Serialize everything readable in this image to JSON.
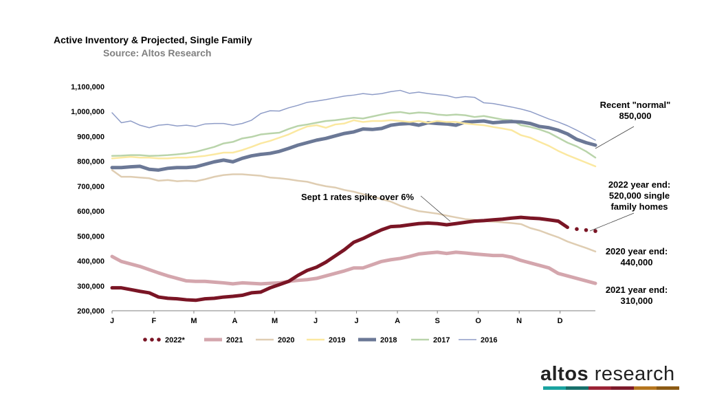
{
  "title": "Active Inventory & Projected, Single Family",
  "subtitle": "Source: Altos Research",
  "logo": {
    "part1": "altos",
    "part2": " research",
    "bar_colors": [
      "#1aa3a0",
      "#17706b",
      "#9b2335",
      "#7d1a2b",
      "#b5761f",
      "#8c5a14"
    ]
  },
  "chart_data": {
    "type": "line",
    "title": "Active Inventory & Projected, Single Family",
    "xlabel": "",
    "ylabel": "",
    "ylim": [
      200000,
      1100000
    ],
    "yticks": [
      200000,
      300000,
      400000,
      500000,
      600000,
      700000,
      800000,
      900000,
      1000000,
      1100000
    ],
    "ytick_labels": [
      "200,000",
      "300,000",
      "400,000",
      "500,000",
      "600,000",
      "700,000",
      "800,000",
      "900,000",
      "1,000,000",
      "1,100,000"
    ],
    "xlim": [
      0,
      52
    ],
    "xticks": [
      0,
      4.5,
      8.8,
      13.2,
      17.5,
      21.9,
      26.3,
      30.7,
      35.0,
      39.4,
      43.8,
      48.2
    ],
    "xtick_labels": [
      "J",
      "F",
      "M",
      "A",
      "M",
      "J",
      "J",
      "A",
      "S",
      "O",
      "N",
      "D"
    ],
    "series": [
      {
        "name": "2016",
        "color": "#8e9cc7",
        "width": 1.5,
        "x": [
          0,
          1,
          2,
          3,
          4,
          5,
          6,
          7,
          8,
          9,
          10,
          11,
          12,
          13,
          14,
          15,
          16,
          17,
          18,
          19,
          20,
          21,
          22,
          23,
          24,
          25,
          26,
          27,
          28,
          29,
          30,
          31,
          32,
          33,
          34,
          35,
          36,
          37,
          38,
          39,
          40,
          41,
          42,
          43,
          44,
          45,
          46,
          47,
          48,
          49,
          50,
          51,
          52
        ],
        "values": [
          995000,
          955000,
          962000,
          945000,
          935000,
          945000,
          948000,
          942000,
          945000,
          940000,
          950000,
          952000,
          952000,
          945000,
          952000,
          965000,
          992000,
          1003000,
          1002000,
          1015000,
          1025000,
          1037000,
          1042000,
          1048000,
          1055000,
          1062000,
          1066000,
          1072000,
          1068000,
          1072000,
          1080000,
          1085000,
          1073000,
          1078000,
          1072000,
          1068000,
          1064000,
          1055000,
          1060000,
          1057000,
          1035000,
          1032000,
          1025000,
          1018000,
          1010000,
          1000000,
          985000,
          970000,
          958000,
          943000,
          925000,
          905000,
          885000
        ]
      },
      {
        "name": "2017",
        "color": "#b9d4aa",
        "width": 2.5,
        "x": [
          0,
          1,
          2,
          3,
          4,
          5,
          6,
          7,
          8,
          9,
          10,
          11,
          12,
          13,
          14,
          15,
          16,
          17,
          18,
          19,
          20,
          21,
          22,
          23,
          24,
          25,
          26,
          27,
          28,
          29,
          30,
          31,
          32,
          33,
          34,
          35,
          36,
          37,
          38,
          39,
          40,
          41,
          42,
          43,
          44,
          45,
          46,
          47,
          48,
          49,
          50,
          51,
          52
        ],
        "values": [
          822000,
          823000,
          825000,
          825000,
          822000,
          823000,
          825000,
          828000,
          832000,
          838000,
          848000,
          858000,
          872000,
          878000,
          892000,
          898000,
          908000,
          912000,
          915000,
          930000,
          942000,
          948000,
          955000,
          962000,
          965000,
          970000,
          975000,
          972000,
          980000,
          988000,
          995000,
          998000,
          992000,
          996000,
          994000,
          988000,
          985000,
          988000,
          985000,
          978000,
          982000,
          975000,
          968000,
          965000,
          945000,
          938000,
          928000,
          915000,
          895000,
          875000,
          860000,
          840000,
          815000
        ]
      },
      {
        "name": "2018",
        "color": "#6b7896",
        "width": 5,
        "x": [
          0,
          1,
          2,
          3,
          4,
          5,
          6,
          7,
          8,
          9,
          10,
          11,
          12,
          13,
          14,
          15,
          16,
          17,
          18,
          19,
          20,
          21,
          22,
          23,
          24,
          25,
          26,
          27,
          28,
          29,
          30,
          31,
          32,
          33,
          34,
          35,
          36,
          37,
          38,
          39,
          40,
          41,
          42,
          43,
          44,
          45,
          46,
          47,
          48,
          49,
          50,
          51,
          52
        ],
        "values": [
          775000,
          775000,
          778000,
          780000,
          768000,
          765000,
          772000,
          775000,
          775000,
          778000,
          788000,
          798000,
          805000,
          798000,
          812000,
          822000,
          828000,
          832000,
          840000,
          852000,
          865000,
          875000,
          885000,
          892000,
          902000,
          912000,
          918000,
          930000,
          928000,
          932000,
          945000,
          950000,
          952000,
          945000,
          955000,
          952000,
          950000,
          945000,
          958000,
          960000,
          962000,
          955000,
          958000,
          960000,
          958000,
          952000,
          940000,
          935000,
          925000,
          910000,
          888000,
          875000,
          865000
        ]
      },
      {
        "name": "2019",
        "color": "#fbe8a0",
        "width": 2.5,
        "x": [
          0,
          1,
          2,
          3,
          4,
          5,
          6,
          7,
          8,
          9,
          10,
          11,
          12,
          13,
          14,
          15,
          16,
          17,
          18,
          19,
          20,
          21,
          22,
          23,
          24,
          25,
          26,
          27,
          28,
          29,
          30,
          31,
          32,
          33,
          34,
          35,
          36,
          37,
          38,
          39,
          40,
          41,
          42,
          43,
          44,
          45,
          46,
          47,
          48,
          49,
          50,
          51,
          52
        ],
        "values": [
          812000,
          815000,
          818000,
          815000,
          815000,
          812000,
          812000,
          815000,
          815000,
          818000,
          822000,
          828000,
          835000,
          835000,
          845000,
          858000,
          872000,
          882000,
          895000,
          908000,
          925000,
          940000,
          945000,
          935000,
          948000,
          952000,
          965000,
          958000,
          962000,
          962000,
          965000,
          962000,
          958000,
          962000,
          955000,
          962000,
          958000,
          958000,
          952000,
          948000,
          945000,
          938000,
          932000,
          925000,
          905000,
          895000,
          878000,
          862000,
          842000,
          825000,
          810000,
          795000,
          780000
        ]
      },
      {
        "name": "2020",
        "color": "#dfcdb2",
        "width": 2.5,
        "x": [
          0,
          1,
          2,
          3,
          4,
          5,
          6,
          7,
          8,
          9,
          10,
          11,
          12,
          13,
          14,
          15,
          16,
          17,
          18,
          19,
          20,
          21,
          22,
          23,
          24,
          25,
          26,
          27,
          28,
          29,
          30,
          31,
          32,
          33,
          34,
          35,
          36,
          37,
          38,
          39,
          40,
          41,
          42,
          43,
          44,
          45,
          46,
          47,
          48,
          49,
          50,
          51,
          52
        ],
        "values": [
          765000,
          738000,
          738000,
          735000,
          732000,
          722000,
          725000,
          720000,
          722000,
          720000,
          728000,
          738000,
          745000,
          748000,
          748000,
          745000,
          742000,
          735000,
          732000,
          728000,
          722000,
          718000,
          708000,
          700000,
          695000,
          685000,
          678000,
          668000,
          658000,
          648000,
          638000,
          622000,
          610000,
          600000,
          595000,
          590000,
          582000,
          575000,
          568000,
          565000,
          560000,
          558000,
          555000,
          552000,
          548000,
          532000,
          522000,
          508000,
          495000,
          478000,
          465000,
          452000,
          438000
        ]
      },
      {
        "name": "2021",
        "color": "#d4a6ad",
        "width": 5,
        "x": [
          0,
          1,
          2,
          3,
          4,
          5,
          6,
          7,
          8,
          9,
          10,
          11,
          12,
          13,
          14,
          15,
          16,
          17,
          18,
          19,
          20,
          21,
          22,
          23,
          24,
          25,
          26,
          27,
          28,
          29,
          30,
          31,
          32,
          33,
          34,
          35,
          36,
          37,
          38,
          39,
          40,
          41,
          42,
          43,
          44,
          45,
          46,
          47,
          48,
          49,
          50,
          51,
          52
        ],
        "values": [
          418000,
          398000,
          388000,
          378000,
          365000,
          352000,
          340000,
          330000,
          320000,
          318000,
          318000,
          315000,
          312000,
          308000,
          312000,
          310000,
          308000,
          310000,
          312000,
          318000,
          322000,
          325000,
          330000,
          340000,
          350000,
          360000,
          372000,
          372000,
          385000,
          398000,
          405000,
          410000,
          418000,
          428000,
          432000,
          435000,
          430000,
          435000,
          432000,
          428000,
          425000,
          422000,
          422000,
          415000,
          402000,
          392000,
          382000,
          372000,
          350000,
          340000,
          330000,
          320000,
          310000
        ]
      },
      {
        "name": "2022*",
        "color": "#7a1525",
        "width": 5,
        "x": [
          0,
          1,
          2,
          3,
          4,
          5,
          6,
          7,
          8,
          9,
          10,
          11,
          12,
          13,
          14,
          15,
          16,
          17,
          18,
          19,
          20,
          21,
          22,
          23,
          24,
          25,
          26,
          27,
          28,
          29,
          30,
          31,
          32,
          33,
          34,
          35,
          36,
          37,
          38,
          39,
          40,
          41,
          42,
          43,
          44,
          45,
          46,
          47,
          48,
          49,
          50,
          51,
          52
        ],
        "values": [
          292000,
          292000,
          285000,
          278000,
          272000,
          255000,
          250000,
          248000,
          244000,
          242000,
          248000,
          250000,
          255000,
          258000,
          262000,
          272000,
          275000,
          292000,
          305000,
          318000,
          342000,
          362000,
          375000,
          395000,
          420000,
          445000,
          475000,
          490000,
          508000,
          525000,
          538000,
          540000,
          545000,
          550000,
          552000,
          550000,
          545000,
          550000,
          555000,
          560000,
          562000,
          565000,
          568000,
          572000,
          575000,
          572000,
          570000,
          565000,
          560000,
          535000,
          528000,
          524000,
          520000
        ],
        "projected_from_x": 49
      }
    ],
    "annotations": [
      {
        "id": "recent-normal",
        "lines": [
          "Recent \"normal\"",
          "850,000"
        ]
      },
      {
        "id": "year-end-2022",
        "lines": [
          "2022 year end:",
          "520,000 single",
          "family homes"
        ]
      },
      {
        "id": "sept-spike",
        "lines": [
          "Sept 1 rates spike over 6%"
        ]
      },
      {
        "id": "year-end-2020",
        "lines": [
          "2020 year end:",
          "440,000"
        ]
      },
      {
        "id": "year-end-2021",
        "lines": [
          "2021 year end:",
          "310,000"
        ]
      }
    ],
    "legend_order": [
      "2022*",
      "2021",
      "2020",
      "2019",
      "2018",
      "2017",
      "2016"
    ]
  }
}
